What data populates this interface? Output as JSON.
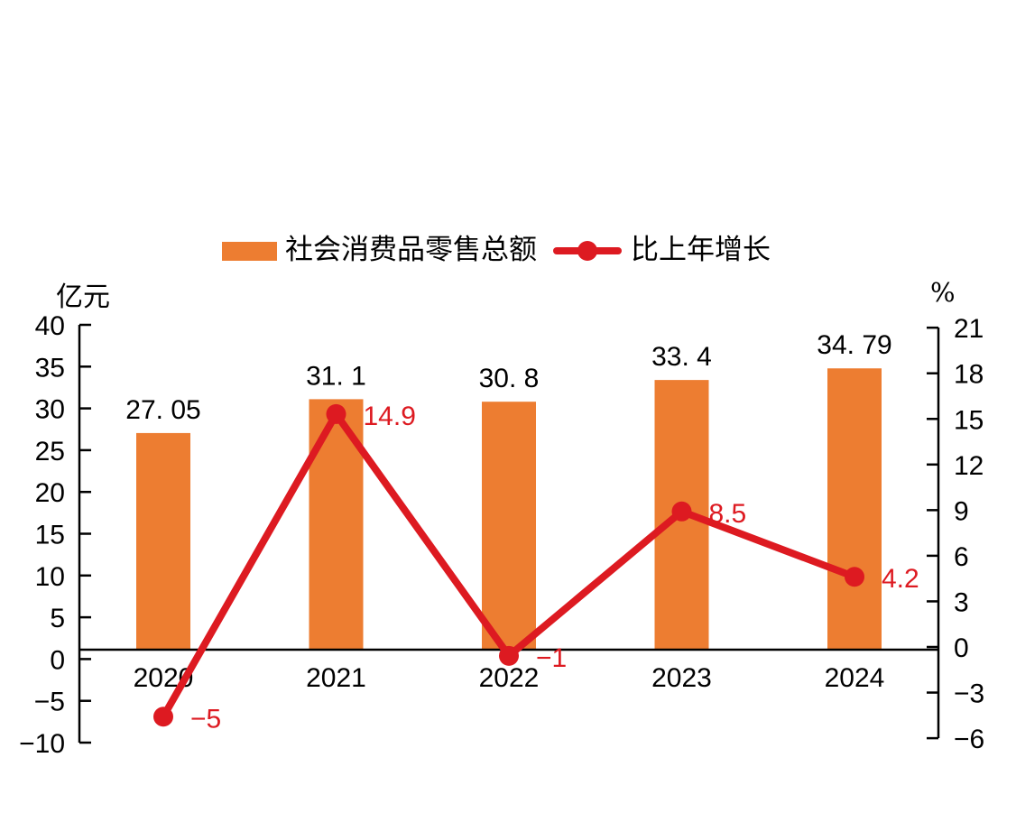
{
  "page": {
    "background": "#FFFFFF",
    "text_color": "#000000"
  },
  "chart_data": {
    "type": "combo",
    "subtypes": [
      "bar",
      "line"
    ],
    "title": "",
    "categories": [
      "2020",
      "2021",
      "2022",
      "2023",
      "2024"
    ],
    "series": [
      {
        "name": "社会消费品零售总额",
        "type": "bar",
        "axis": "left",
        "unit": "亿元",
        "color": "#ED7D31",
        "values": [
          27.05,
          31.1,
          30.8,
          33.4,
          34.79
        ],
        "value_labels": [
          "27. 05",
          "31. 1",
          "30. 8",
          "33. 4",
          "34. 79"
        ]
      },
      {
        "name": "比上年增长",
        "type": "line",
        "axis": "right",
        "unit": "%",
        "color": "#DD1A21",
        "values": [
          -5,
          14.9,
          -1,
          8.5,
          4.2
        ],
        "value_labels": [
          "−5",
          "14.9",
          "−1",
          "8.5",
          "4.2"
        ]
      }
    ],
    "left_axis": {
      "unit": "亿元",
      "min": -10,
      "max": 40,
      "step": 5,
      "ticks": [
        40,
        35,
        30,
        25,
        20,
        15,
        10,
        5,
        0,
        -5,
        -10
      ]
    },
    "right_axis": {
      "unit": "%",
      "min": -6,
      "max": 21,
      "step": 3,
      "ticks": [
        21,
        18,
        15,
        12,
        9,
        6,
        3,
        0,
        -3,
        -6
      ]
    },
    "legend_position": "top",
    "grid": false,
    "axis_color": "#000000"
  }
}
